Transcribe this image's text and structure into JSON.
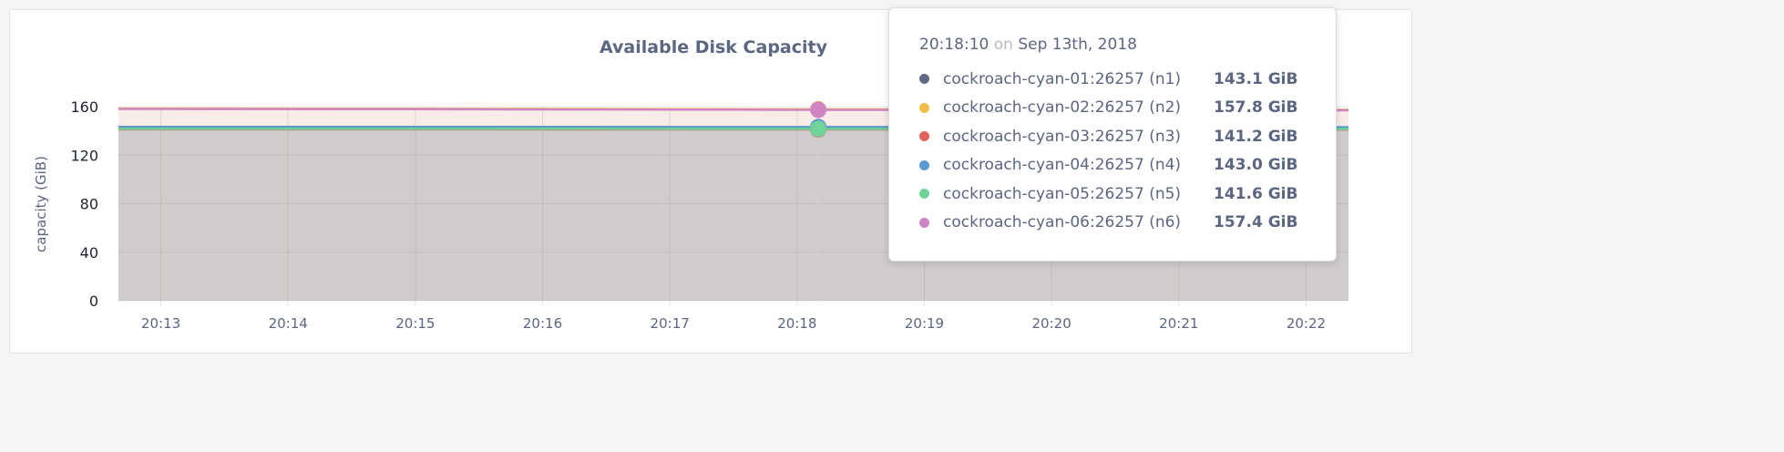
{
  "chart_data": {
    "type": "area",
    "title": "Available Disk Capacity",
    "ylabel": "capacity (GiB)",
    "xlabel": "",
    "ylim": [
      0,
      160
    ],
    "yticks": [
      "0",
      "40",
      "80",
      "120",
      "160"
    ],
    "xticks": [
      "20:13",
      "20:14",
      "20:15",
      "20:16",
      "20:17",
      "20:18",
      "20:19",
      "20:20",
      "20:21",
      "20:22"
    ],
    "xrange": [
      "20:12:40",
      "20:22:20"
    ],
    "grid": true,
    "x": [
      "20:12:40",
      "20:15:00",
      "20:18:10",
      "20:20:00",
      "20:22:20"
    ],
    "series": [
      {
        "name": "cockroach-cyan-01:26257 (n1)",
        "color": "#5f6b85",
        "values": [
          143.2,
          143.2,
          143.1,
          143.1,
          143.0
        ]
      },
      {
        "name": "cockroach-cyan-02:26257 (n2)",
        "color": "#eebd4a",
        "values": [
          158.5,
          158.3,
          157.8,
          157.6,
          157.4
        ]
      },
      {
        "name": "cockroach-cyan-03:26257 (n3)",
        "color": "#e3635b",
        "values": [
          141.3,
          141.3,
          141.2,
          141.2,
          141.1
        ]
      },
      {
        "name": "cockroach-cyan-04:26257 (n4)",
        "color": "#5b9bd1",
        "values": [
          143.1,
          143.1,
          143.0,
          143.0,
          142.9
        ]
      },
      {
        "name": "cockroach-cyan-05:26257 (n5)",
        "color": "#6fd39a",
        "values": [
          141.7,
          141.7,
          141.6,
          141.6,
          141.5
        ]
      },
      {
        "name": "cockroach-cyan-06:26257 (n6)",
        "color": "#cf84c3",
        "values": [
          158.1,
          157.9,
          157.4,
          157.2,
          157.0
        ]
      }
    ],
    "hover": "20:18:10"
  },
  "tooltip": {
    "time": "20:18:10",
    "on": "on",
    "date": "Sep 13th, 2018",
    "rows": [
      {
        "name": "cockroach-cyan-01:26257 (n1)",
        "value": "143.1 GiB"
      },
      {
        "name": "cockroach-cyan-02:26257 (n2)",
        "value": "157.8 GiB"
      },
      {
        "name": "cockroach-cyan-03:26257 (n3)",
        "value": "141.2 GiB"
      },
      {
        "name": "cockroach-cyan-04:26257 (n4)",
        "value": "143.0 GiB"
      },
      {
        "name": "cockroach-cyan-05:26257 (n5)",
        "value": "141.6 GiB"
      },
      {
        "name": "cockroach-cyan-06:26257 (n6)",
        "value": "157.4 GiB"
      }
    ]
  }
}
